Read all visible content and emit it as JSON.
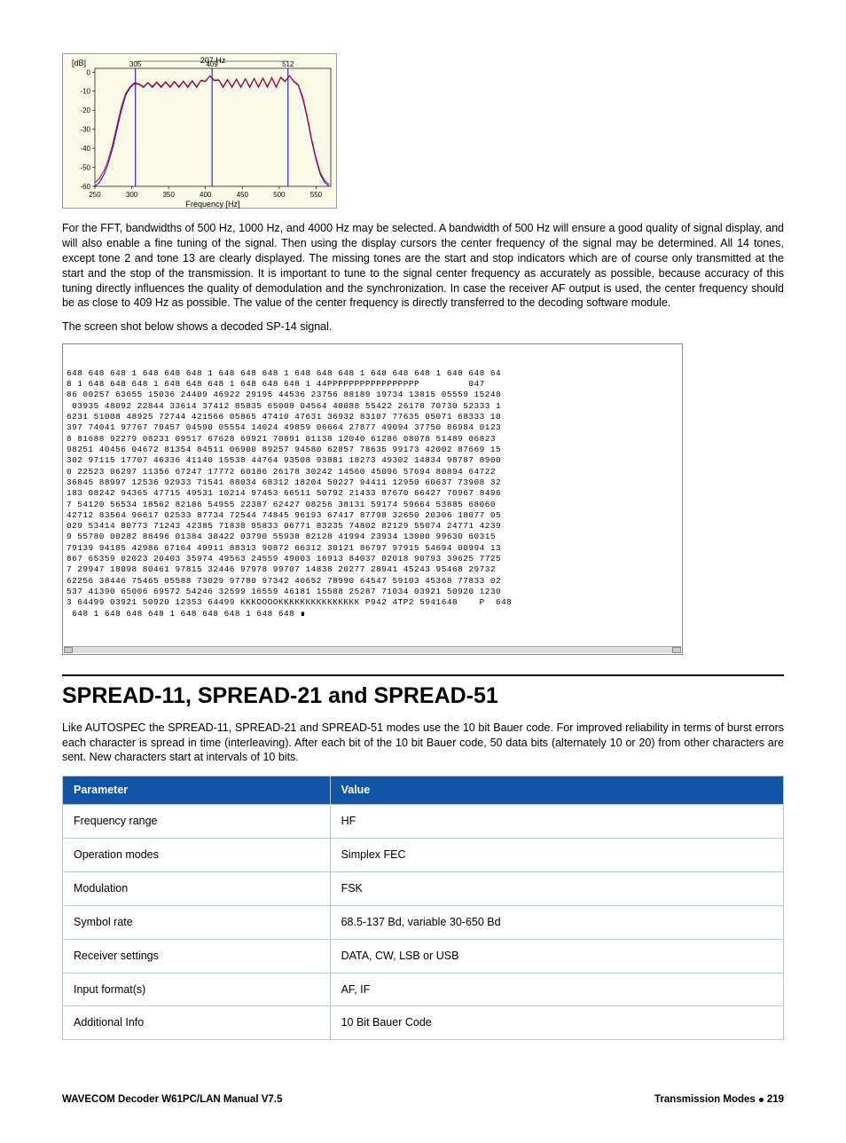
{
  "chart": {
    "type": "line",
    "top_label": "207 Hz",
    "markers_x": [
      305,
      409,
      512
    ],
    "marker_labels": [
      "305",
      "409",
      "512"
    ],
    "xlabel": "Frequency [Hz]",
    "ylabel": "[dB]",
    "background_color": "#fbfae8",
    "grid_color": "#cccccc",
    "red_color": "#d00000",
    "blue_color": "#0000e0",
    "xlim": [
      250,
      570
    ],
    "ylim": [
      -60,
      2
    ],
    "xticks": [
      250,
      300,
      350,
      400,
      450,
      500,
      550
    ],
    "yticks": [
      0,
      -10,
      -20,
      -30,
      -40,
      -50,
      -60
    ],
    "blue_x": [
      250,
      256,
      262,
      268,
      274,
      280,
      286,
      292,
      298,
      304,
      310,
      316,
      322,
      328,
      334,
      340,
      346,
      352,
      358,
      364,
      370,
      376,
      382,
      388,
      394,
      400,
      406,
      412,
      418,
      424,
      430,
      436,
      442,
      448,
      454,
      460,
      466,
      472,
      478,
      484,
      490,
      496,
      502,
      508,
      514,
      520,
      526,
      532,
      538,
      544,
      550,
      556,
      562,
      568
    ],
    "blue_y": [
      -60,
      -58,
      -54,
      -48,
      -40,
      -30,
      -20,
      -12,
      -8,
      -6,
      -6.5,
      -8,
      -5.7,
      -8,
      -5.5,
      -8,
      -5.3,
      -8,
      -5.1,
      -8,
      -4.9,
      -8,
      -4.7,
      -8,
      -4.5,
      -5,
      -2,
      -4.5,
      -4.3,
      -8,
      -4.1,
      -8,
      -3.9,
      -8,
      -3.7,
      -8,
      -3.5,
      -8,
      -3.3,
      -8,
      -3.1,
      -8,
      -2.9,
      -5,
      -2,
      -5,
      -7,
      -14,
      -24,
      -36,
      -46,
      -54,
      -58,
      -60
    ],
    "red_x": [
      250,
      256,
      262,
      268,
      274,
      280,
      286,
      292,
      298,
      304,
      310,
      316,
      322,
      328,
      334,
      340,
      346,
      352,
      358,
      364,
      370,
      376,
      382,
      388,
      394,
      400,
      406,
      412,
      418,
      424,
      430,
      436,
      442,
      448,
      454,
      460,
      466,
      472,
      478,
      484,
      490,
      496,
      502,
      508,
      514,
      520,
      526,
      532,
      538,
      544,
      550,
      556,
      562,
      568
    ],
    "red_y": [
      -58,
      -56,
      -52,
      -46,
      -38,
      -28,
      -18,
      -11,
      -7.5,
      -5.5,
      -6.2,
      -7.6,
      -5.4,
      -7.6,
      -5.2,
      -7.6,
      -5.0,
      -7.6,
      -4.8,
      -7.6,
      -4.6,
      -7.6,
      -4.4,
      -7.6,
      -4.2,
      -4.7,
      -1.8,
      -4.2,
      -4.0,
      -7.6,
      -3.8,
      -7.6,
      -3.6,
      -7.6,
      -3.4,
      -7.6,
      -3.2,
      -7.6,
      -3.0,
      -7.6,
      -2.8,
      -7.6,
      -2.6,
      -4.7,
      -1.8,
      -4.7,
      -6.6,
      -13,
      -23,
      -35,
      -45,
      -53,
      -57,
      -59
    ],
    "tick_fontsize": 8,
    "label_fontsize": 9
  },
  "para1": "For the FFT, bandwidths of 500 Hz, 1000 Hz, and 4000 Hz may be selected. A bandwidth of 500 Hz will ensure a good quality of signal display, and will also enable a fine tuning of the signal. Then using the display cursors the center frequency of the signal may be determined. All 14 tones, except tone 2 and tone 13 are clearly displayed. The missing tones are the start and stop indicators which are of course only transmitted at the start and the stop of the transmission. It is important to tune to the signal center frequency as accurately as possible, because accuracy of this tuning directly influences the quality of demodulation and the synchronization. In case the receiver AF output is used, the center frequency should be as close to 409 Hz as possible. The value of the center frequency is directly transferred to the decoding software module.",
  "para2": "The screen shot below shows a decoded SP-14 signal.",
  "decoded_lines": [
    "648 648 648 1 648 648 648 1 648 648 648 1 648 648 648 1 648 648 648 1 648 648 64",
    "8 1 648 648 648 1 648 648 648 1 648 648 648 1 44РРРРРРРРРРРРРРРРР         047",
    "86 00257 63655 15036 24409 46922 29195 44536 23756 88189 19734 13815 05559 15248",
    " 03935 48092 22844 33614 37412 85835 65008 04564 40088 55422 26178 70730 52333 1",
    "6231 51008 48925 72744 421566 05865 47410 47631 36932 83107 77635 05071 68333 10",
    "397 74041 97767 70457 04590 05554 14024 49859 06664 27877 49094 37750 86984 0123",
    "8 81688 92279 08231 09517 67628 69921 70891 01138 12040 61286 08078 51489 06823",
    "98251 40456 04672 81354 84511 06900 89257 94580 62857 78635 99173 42002 87669 15",
    "302 97115 17707 46336 41140 15538 44764 93508 93881 18273 49302 14834 98787 8900",
    "0 22523 06297 11356 67247 17772 60186 26178 30242 14560 45096 57694 80894 64722",
    "36845 88997 12536 92933 71541 88034 68312 18204 50227 94411 12950 60637 73908 32",
    "183 08242 94365 47715 49531 10214 97453 66511 50792 21433 87670 66427 70967 8496",
    "7 54120 56534 18562 82186 54955 22387 62427 08256 38131 59174 59664 53885 68060",
    "42712 83564 96617 02533 87734 72544 74845 96193 67417 87798 32650 20306 18077 05",
    "029 53414 80773 71243 42385 71838 95833 06771 83235 74802 82129 55074 24771 4239",
    "9 55780 00282 88496 01384 38422 03790 55938 82128 41994 23934 13000 99630 60315",
    "79139 94185 42986 67164 49911 88313 90872 66312 30121 86797 97915 54694 00994 13",
    "867 65359 02023 20403 35974 49563 24559 49003 16913 84037 02018 90793 39625 7725",
    "7 29947 18098 80461 97815 32446 97978 99707 14838 20277 28941 45243 95468 29732",
    "62256 38446 75465 05588 73029 97780 97342 40652 78990 64547 59103 45368 77833 02",
    "537 41390 65006 69572 54246 32599 16559 46181 15588 25287 71034 03921 50920 1230",
    "3 64499 03921 50920 12353 64499 КККООООККККККККККККККК Р942 4ТР2 5941648    Р  648",
    " 648 1 648 648 648 1 648 648 648 1 648 648 ∎",
    " "
  ],
  "section_heading": "SPREAD-11, SPREAD-21 and SPREAD-51",
  "para3": "Like AUTOSPEC the SPREAD-11, SPREAD-21 and SPREAD-51 modes use the 10 bit Bauer code. For improved reliability in terms of burst errors each character is spread in time (interleaving). After each bit of the 10 bit Bauer code, 50 data bits (alternately 10 or 20) from other characters are sent. New characters start at intervals of 10 bits.",
  "table": {
    "headers": [
      "Parameter",
      "Value"
    ],
    "header_bg": "#1154a4",
    "header_fg": "#ffffff",
    "border_color": "#b8c8d8",
    "col_widths": [
      "33%",
      "67%"
    ],
    "rows": [
      [
        "Frequency range",
        "HF"
      ],
      [
        "Operation modes",
        "Simplex FEC"
      ],
      [
        "Modulation",
        "FSK"
      ],
      [
        "Symbol rate",
        "68.5-137 Bd, variable 30-650 Bd"
      ],
      [
        "Receiver settings",
        "DATA, CW, LSB or USB"
      ],
      [
        "Input format(s)",
        "AF, IF"
      ],
      [
        "Additional Info",
        "10 Bit Bauer Code"
      ]
    ]
  },
  "footer": {
    "left": "WAVECOM Decoder W61PC/LAN Manual V7.5",
    "right_label": "Transmission Modes",
    "right_page": "219"
  }
}
